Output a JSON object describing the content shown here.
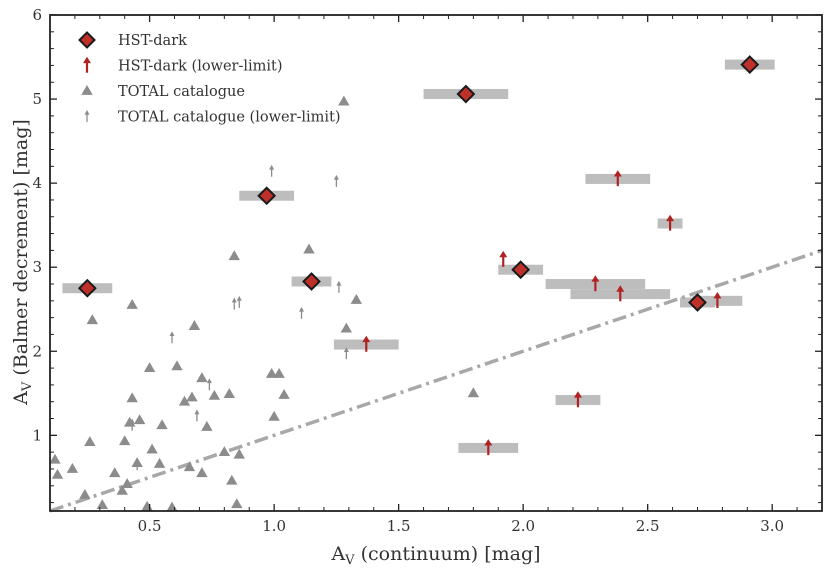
{
  "chart_data": {
    "type": "scatter",
    "xlabel": "A_V (continuum) [mag]",
    "ylabel": "A_V (Balmer decrement) [mag]",
    "xlim": [
      0.1,
      3.2
    ],
    "ylim": [
      0.1,
      6.0
    ],
    "xticks": [
      "0.5",
      "1.0",
      "1.5",
      "2.0",
      "2.5",
      "3.0"
    ],
    "xtick_values": [
      0.5,
      1.0,
      1.5,
      2.0,
      2.5,
      3.0
    ],
    "yticks": [
      "1",
      "2",
      "3",
      "4",
      "5",
      "6"
    ],
    "ytick_values": [
      1,
      2,
      3,
      4,
      5,
      6
    ],
    "legend": {
      "location": "top-left",
      "entries": [
        "HST-dark",
        "HST-dark (lower-limit)",
        "TOTAL catalogue",
        "TOTAL catalogue (lower-limit)"
      ]
    },
    "colors": {
      "hst_face": "#c0302b",
      "hst_edge": "#1a1a1a",
      "lower_limit": "#b22222",
      "total": "#8c8c8c",
      "error_bar": "#bdbdbd",
      "reference_line": "#a8a8a8",
      "frame": "#222222"
    },
    "reference_line": {
      "style": "dash-dot",
      "x": [
        0.1,
        3.2
      ],
      "y": [
        0.1,
        3.2
      ]
    },
    "series": [
      {
        "name": "HST-dark",
        "marker": "diamond",
        "points": [
          {
            "x": 0.25,
            "y": 2.75,
            "xerr": 0.1
          },
          {
            "x": 0.97,
            "y": 3.85,
            "xerr": 0.11
          },
          {
            "x": 1.15,
            "y": 2.83,
            "xerr": 0.08
          },
          {
            "x": 1.77,
            "y": 5.06,
            "xerr": 0.17
          },
          {
            "x": 1.99,
            "y": 2.97,
            "xerr": 0.09
          },
          {
            "x": 2.7,
            "y": 2.58,
            "xerr": 0.07
          },
          {
            "x": 2.91,
            "y": 5.41,
            "xerr": 0.1
          }
        ]
      },
      {
        "name": "HST-dark (lower-limit)",
        "marker": "up-arrow",
        "points": [
          {
            "x": 1.37,
            "y": 2.08,
            "xerr": 0.13
          },
          {
            "x": 1.86,
            "y": 0.85,
            "xerr": 0.12
          },
          {
            "x": 1.92,
            "y": 3.09,
            "xerr": 0
          },
          {
            "x": 2.22,
            "y": 1.42,
            "xerr": 0.09
          },
          {
            "x": 2.29,
            "y": 2.8,
            "xerr": 0.2
          },
          {
            "x": 2.39,
            "y": 2.68,
            "xerr": 0.2
          },
          {
            "x": 2.38,
            "y": 4.05,
            "xerr": 0.13
          },
          {
            "x": 2.59,
            "y": 3.52,
            "xerr": 0.05
          },
          {
            "x": 2.78,
            "y": 2.6,
            "xerr": 0.1
          }
        ]
      },
      {
        "name": "TOTAL catalogue",
        "marker": "triangle",
        "points": [
          {
            "x": 0.12,
            "y": 0.71
          },
          {
            "x": 0.13,
            "y": 0.53
          },
          {
            "x": 0.19,
            "y": 0.6
          },
          {
            "x": 0.24,
            "y": 0.29
          },
          {
            "x": 0.26,
            "y": 0.92
          },
          {
            "x": 0.27,
            "y": 2.37
          },
          {
            "x": 0.31,
            "y": 0.17
          },
          {
            "x": 0.36,
            "y": 0.55
          },
          {
            "x": 0.39,
            "y": 0.34
          },
          {
            "x": 0.4,
            "y": 0.93
          },
          {
            "x": 0.41,
            "y": 0.42
          },
          {
            "x": 0.42,
            "y": 1.15
          },
          {
            "x": 0.43,
            "y": 1.44
          },
          {
            "x": 0.43,
            "y": 2.55
          },
          {
            "x": 0.45,
            "y": 0.67
          },
          {
            "x": 0.46,
            "y": 1.18
          },
          {
            "x": 0.49,
            "y": 0.15
          },
          {
            "x": 0.5,
            "y": 1.8
          },
          {
            "x": 0.51,
            "y": 0.83
          },
          {
            "x": 0.54,
            "y": 0.66
          },
          {
            "x": 0.55,
            "y": 1.12
          },
          {
            "x": 0.59,
            "y": 0.14
          },
          {
            "x": 0.61,
            "y": 1.82
          },
          {
            "x": 0.64,
            "y": 1.4
          },
          {
            "x": 0.66,
            "y": 0.62
          },
          {
            "x": 0.67,
            "y": 1.45
          },
          {
            "x": 0.68,
            "y": 2.3
          },
          {
            "x": 0.71,
            "y": 0.55
          },
          {
            "x": 0.71,
            "y": 1.68
          },
          {
            "x": 0.73,
            "y": 1.1
          },
          {
            "x": 0.76,
            "y": 1.47
          },
          {
            "x": 0.8,
            "y": 0.8
          },
          {
            "x": 0.83,
            "y": 0.46
          },
          {
            "x": 0.84,
            "y": 3.13
          },
          {
            "x": 0.82,
            "y": 1.49
          },
          {
            "x": 0.85,
            "y": 0.18
          },
          {
            "x": 0.86,
            "y": 0.77
          },
          {
            "x": 0.99,
            "y": 1.73
          },
          {
            "x": 1.0,
            "y": 1.22
          },
          {
            "x": 1.02,
            "y": 1.73
          },
          {
            "x": 1.04,
            "y": 1.48
          },
          {
            "x": 1.14,
            "y": 3.21
          },
          {
            "x": 1.28,
            "y": 4.97
          },
          {
            "x": 1.29,
            "y": 2.27
          },
          {
            "x": 1.33,
            "y": 2.61
          },
          {
            "x": 1.8,
            "y": 1.5
          }
        ]
      },
      {
        "name": "TOTAL catalogue (lower-limit)",
        "marker": "up-arrow-small",
        "points": [
          {
            "x": 0.43,
            "y": 1.12
          },
          {
            "x": 0.45,
            "y": 0.65
          },
          {
            "x": 0.59,
            "y": 2.16
          },
          {
            "x": 0.69,
            "y": 1.23
          },
          {
            "x": 0.74,
            "y": 1.6
          },
          {
            "x": 0.84,
            "y": 2.56
          },
          {
            "x": 0.86,
            "y": 2.58
          },
          {
            "x": 0.99,
            "y": 4.14
          },
          {
            "x": 1.11,
            "y": 2.45
          },
          {
            "x": 1.25,
            "y": 4.02
          },
          {
            "x": 1.26,
            "y": 2.76
          },
          {
            "x": 1.29,
            "y": 1.97
          }
        ]
      }
    ]
  }
}
